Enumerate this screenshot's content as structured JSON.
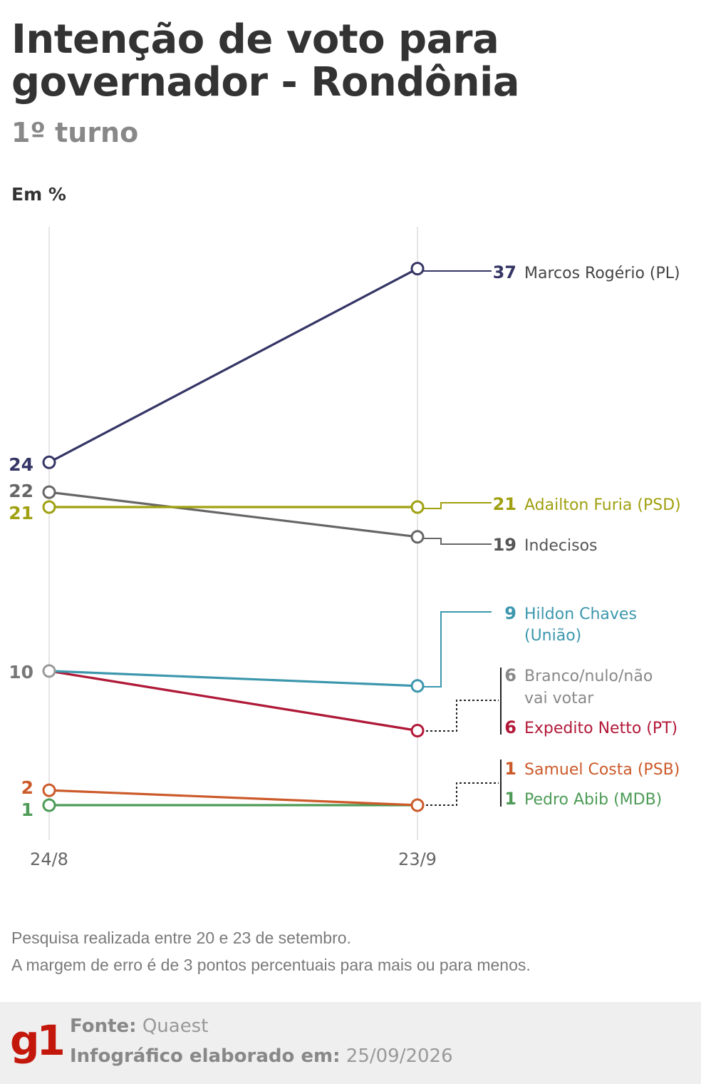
{
  "header": {
    "title": "Intenção de voto para governador - Rondônia",
    "subtitle": "1º turno",
    "unit": "Em %"
  },
  "chart_data": {
    "type": "line",
    "x": [
      "24/8",
      "23/9"
    ],
    "grid": "vertical lines at each date",
    "legend": "direct labels at right",
    "series": [
      {
        "name": "Marcos Rogério (PL)",
        "values": [
          24,
          37
        ],
        "color": "#353566"
      },
      {
        "name": "Adailton Furia (PSD)",
        "values": [
          21,
          21
        ],
        "color": "#a0a011"
      },
      {
        "name": "Indecisos",
        "values": [
          22,
          19
        ],
        "color": "#666666"
      },
      {
        "name": "Hildon Chaves (União)",
        "values": [
          10,
          9
        ],
        "color": "#3c97ad"
      },
      {
        "name": "Branco/nulo/não vai votar",
        "values": [
          10,
          6
        ],
        "color": "#999999"
      },
      {
        "name": "Expedito Netto (PT)",
        "values": [
          10,
          6
        ],
        "color": "#b21838"
      },
      {
        "name": "Samuel Costa (PSB)",
        "values": [
          2,
          1
        ],
        "color": "#cc5a2a"
      },
      {
        "name": "Pedro Abib (MDB)",
        "values": [
          1,
          1
        ],
        "color": "#4d9b56"
      }
    ],
    "left_labels": [
      {
        "text": "24",
        "color": "#353566"
      },
      {
        "text": "22",
        "color": "#666666"
      },
      {
        "text": "21",
        "color": "#a0a011"
      },
      {
        "text": "10",
        "color": "#777777"
      },
      {
        "text": "2",
        "color": "#cc5a2a"
      },
      {
        "text": "1",
        "color": "#4d9b56"
      }
    ],
    "right_labels": [
      {
        "value": "37",
        "name": "Marcos Rogério (PL)",
        "color": "#353566",
        "name_color": "#444444"
      },
      {
        "value": "21",
        "name": "Adailton Furia (PSD)",
        "color": "#a0a011",
        "name_color": "#a0a011"
      },
      {
        "value": "19",
        "name": "Indecisos",
        "color": "#555555",
        "name_color": "#555555"
      },
      {
        "value": "9",
        "name": "Hildon Chaves",
        "name2": "(União)",
        "color": "#3c97ad",
        "name_color": "#3c97ad"
      },
      {
        "value": "6",
        "name": "Branco/nulo/não",
        "name2": "vai votar",
        "color": "#888888",
        "name_color": "#888888"
      },
      {
        "value": "6",
        "name": "Expedito Netto (PT)",
        "color": "#b21838",
        "name_color": "#b21838"
      },
      {
        "value": "1",
        "name": "Samuel Costa (PSB)",
        "color": "#cc5a2a",
        "name_color": "#cc5a2a"
      },
      {
        "value": "1",
        "name": "Pedro Abib (MDB)",
        "color": "#4d9b56",
        "name_color": "#4d9b56"
      }
    ]
  },
  "notes": {
    "line1": "Pesquisa realizada entre 20 e 23 de setembro.",
    "line2": "A margem de erro é de 3 pontos percentuais para mais ou para menos."
  },
  "footer": {
    "logo": "g1",
    "source_label": "Fonte:",
    "source_value": "Quaest",
    "date_label": "Infográfico elaborado em:",
    "date_value": "25/09/2026"
  }
}
